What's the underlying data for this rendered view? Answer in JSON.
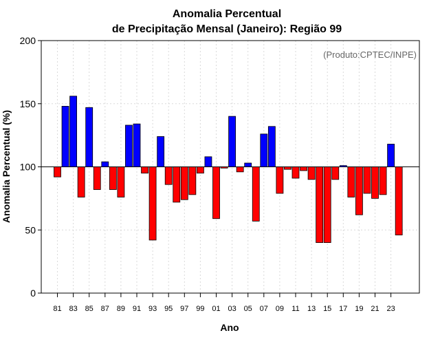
{
  "chart_data": {
    "type": "bar",
    "title_line1": "Anomalia Percentual",
    "title_line2": "de Precipitação Mensal (Janeiro): Região 99",
    "xlabel": "Ano",
    "ylabel": "Anomalia Percentual (%)",
    "credit": "(Produto:CPTEC/INPE)",
    "ylim": [
      0,
      200
    ],
    "yticks": [
      "0",
      "50",
      "100",
      "150",
      "200"
    ],
    "baseline": 100,
    "grid": true,
    "colors": {
      "above": "#0000ff",
      "below": "#ff0000",
      "edge": "#000000",
      "grid": "#d9d9d9"
    },
    "categories": [
      "81",
      "82",
      "83",
      "84",
      "85",
      "86",
      "87",
      "88",
      "89",
      "90",
      "91",
      "92",
      "93",
      "94",
      "95",
      "96",
      "97",
      "98",
      "99",
      "00",
      "01",
      "02",
      "03",
      "04",
      "05",
      "06",
      "07",
      "08",
      "09",
      "10",
      "11",
      "12",
      "13",
      "14",
      "15",
      "16",
      "17",
      "18",
      "19",
      "20",
      "21",
      "22",
      "23",
      "24"
    ],
    "tick_labels": [
      "81",
      "83",
      "85",
      "87",
      "89",
      "91",
      "93",
      "95",
      "97",
      "99",
      "01",
      "03",
      "05",
      "07",
      "09",
      "11",
      "13",
      "15",
      "17",
      "19",
      "21",
      "23"
    ],
    "values": [
      92,
      148,
      156,
      76,
      147,
      82,
      104,
      82,
      76,
      133,
      134,
      95,
      42,
      124,
      86,
      72,
      74,
      78,
      95,
      108,
      59,
      99,
      140,
      96,
      103,
      57,
      126,
      132,
      79,
      98,
      91,
      97,
      90,
      40,
      40,
      90,
      101,
      76,
      62,
      79,
      75,
      78,
      118,
      46
    ]
  }
}
